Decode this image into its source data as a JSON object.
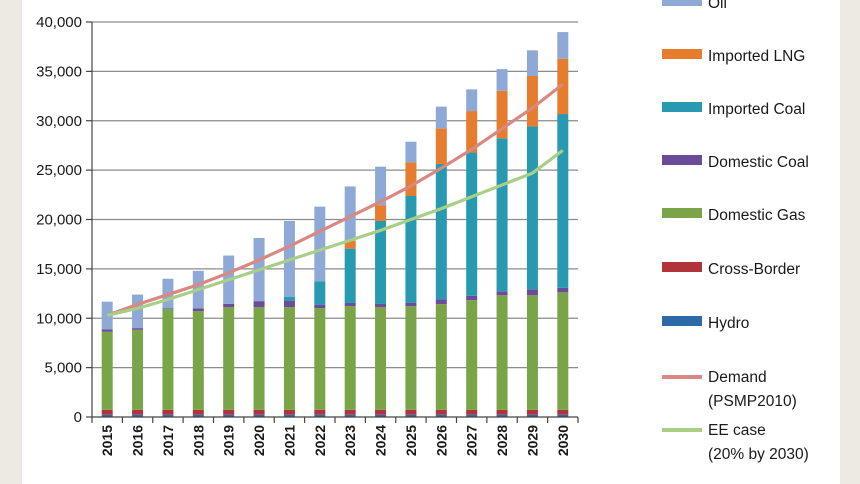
{
  "chart_data": {
    "type": "bar",
    "stacked": true,
    "title": "",
    "xlabel": "",
    "ylabel": "",
    "ylim": [
      0,
      40000
    ],
    "yticks": [
      "0",
      "5,000",
      "10,000",
      "15,000",
      "20,000",
      "25,000",
      "30,000",
      "35,000",
      "40,000"
    ],
    "grid": true,
    "legend_position": "right",
    "categories": [
      "2015",
      "2016",
      "2017",
      "2018",
      "2019",
      "2020",
      "2021",
      "2022",
      "2023",
      "2024",
      "2025",
      "2026",
      "2027",
      "2028",
      "2029",
      "2030"
    ],
    "series": [
      {
        "name": "Hydro",
        "color": "#2e6aa8",
        "values": [
          230,
          230,
          230,
          230,
          230,
          230,
          230,
          230,
          230,
          230,
          230,
          230,
          230,
          230,
          230,
          230
        ]
      },
      {
        "name": "Cross-Border",
        "color": "#b0343a",
        "values": [
          500,
          500,
          500,
          500,
          500,
          500,
          500,
          500,
          500,
          500,
          500,
          500,
          500,
          500,
          500,
          500
        ]
      },
      {
        "name": "Domestic Gas",
        "color": "#79a447",
        "values": [
          7900,
          8100,
          10200,
          10000,
          10400,
          10400,
          10400,
          10300,
          10500,
          10400,
          10500,
          10700,
          11100,
          11600,
          11600,
          11900
        ]
      },
      {
        "name": "Domestic Coal",
        "color": "#6b4c9a",
        "values": [
          250,
          170,
          70,
          270,
          320,
          600,
          620,
          320,
          320,
          320,
          350,
          500,
          450,
          400,
          600,
          450
        ]
      },
      {
        "name": "Imported Coal",
        "color": "#2799b1",
        "values": [
          0,
          0,
          0,
          0,
          0,
          0,
          400,
          2400,
          5500,
          8400,
          10800,
          13700,
          14500,
          15500,
          16500,
          17600
        ]
      },
      {
        "name": "Imported LNG",
        "color": "#e57c2e",
        "values": [
          0,
          0,
          0,
          0,
          0,
          0,
          0,
          0,
          800,
          1600,
          3400,
          3600,
          4200,
          4800,
          5100,
          5600
        ]
      },
      {
        "name": "Oil",
        "color": "#8ea9d6",
        "values": [
          2800,
          3400,
          3000,
          3800,
          4900,
          6400,
          7700,
          7550,
          5500,
          3900,
          2100,
          2200,
          2200,
          2200,
          2600,
          2700
        ]
      }
    ],
    "lines": [
      {
        "name": "Demand (PSMP2010)",
        "color": "#d98882",
        "values": [
          10300,
          11400,
          12400,
          13400,
          14600,
          15900,
          17300,
          18800,
          20300,
          21800,
          23400,
          25200,
          27100,
          29200,
          31300,
          33700
        ]
      },
      {
        "name": "EE case (20% by 2030)",
        "color": "#a7cf86",
        "values": [
          10300,
          11000,
          11900,
          12900,
          13900,
          14900,
          15900,
          16900,
          17900,
          18900,
          20000,
          21100,
          22300,
          23500,
          24700,
          27000
        ]
      }
    ],
    "legend": {
      "labels": [
        "Oil",
        "Imported LNG",
        "Imported Coal",
        "Domestic Coal",
        "Domestic Gas",
        "Cross-Border",
        "Hydro",
        "Demand",
        "(PSMP2010)",
        "EE case",
        "(20% by 2030)"
      ]
    }
  }
}
